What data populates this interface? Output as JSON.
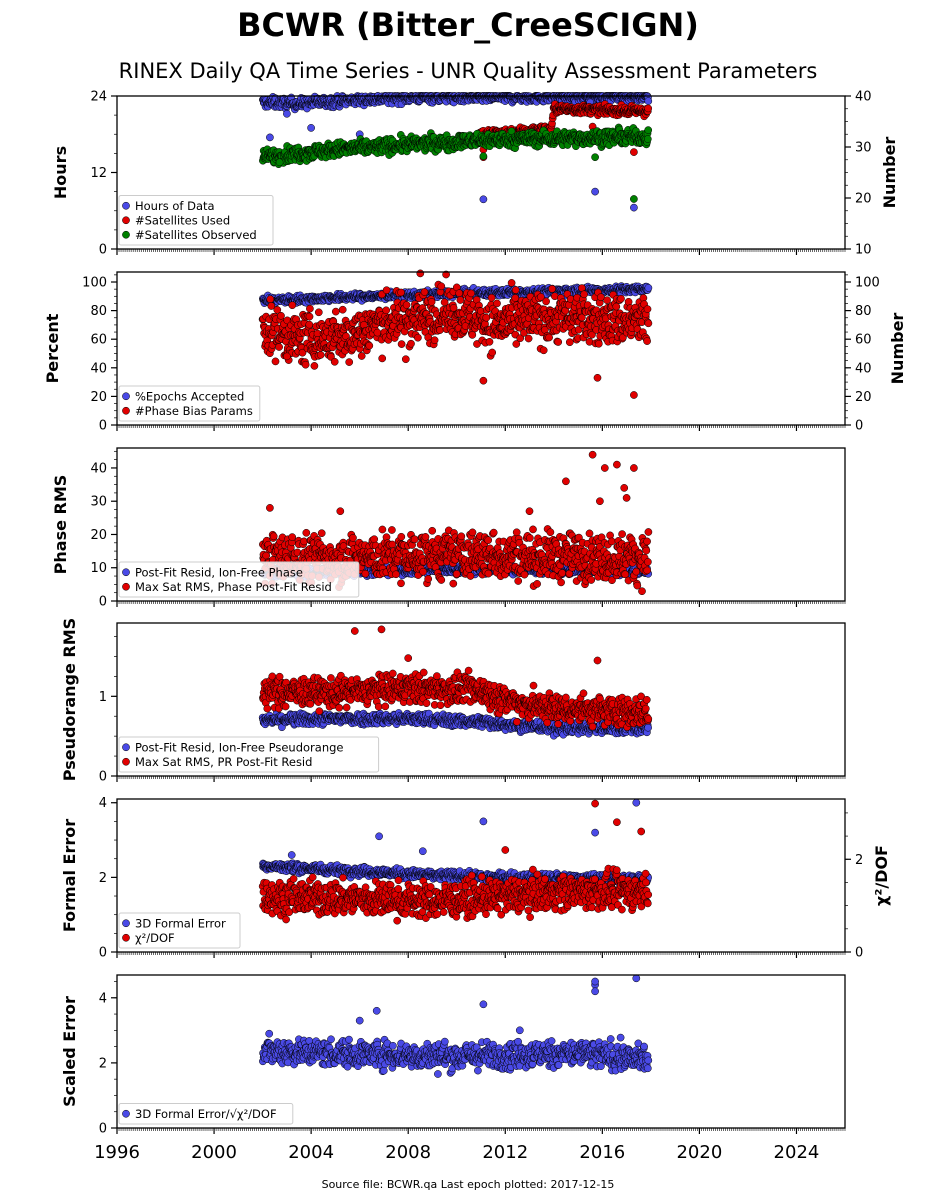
{
  "title": "BCWR (Bitter_CreeSCIGN)",
  "subtitle": "RINEX Daily QA Time Series - UNR Quality Assessment Parameters",
  "footer": "Source file: BCWR.qa Last epoch plotted: 2017-12-15",
  "colors": {
    "blue": "#4a4ae6",
    "red": "#e00000",
    "green": "#008000"
  },
  "chart_data": [
    {
      "type": "scatter",
      "ylabel": "Hours",
      "ylabel_right": "Number",
      "xlim": [
        1996,
        2026
      ],
      "ylim": [
        0,
        24
      ],
      "ylim_right": [
        10,
        40
      ],
      "yticks": [
        "0",
        "12",
        "24"
      ],
      "yticks_right": [
        "10",
        "20",
        "30",
        "40"
      ],
      "legend_position": "lower-left",
      "series": [
        {
          "name": "Hours of Data",
          "color": "blue",
          "axis": "left",
          "base": [
            [
              2002.0,
              23.0
            ],
            [
              2003.5,
              22.8
            ],
            [
              2005.5,
              23.3
            ],
            [
              2008,
              23.8
            ],
            [
              2012,
              23.8
            ],
            [
              2017.9,
              24
            ]
          ],
          "noise": 0.4,
          "outliers": [
            [
              2002.3,
              17.5
            ],
            [
              2004.0,
              19.0
            ],
            [
              2006.0,
              18.0
            ],
            [
              2011.1,
              7.8
            ],
            [
              2015.7,
              9.0
            ],
            [
              2017.3,
              6.5
            ],
            [
              2015.5,
              23.0
            ],
            [
              2003.0,
              21.2
            ]
          ]
        },
        {
          "name": "#Satellites Used",
          "color": "red",
          "axis": "right",
          "base": [
            [
              2010.8,
              32.5
            ],
            [
              2013.9,
              33.5
            ],
            [
              2014.0,
              37.5
            ],
            [
              2017.9,
              37.0
            ]
          ],
          "noise": 0.4,
          "outliers": [
            [
              2011.1,
              29.5
            ],
            [
              2017.3,
              29.0
            ],
            [
              2015.6,
              34.0
            ],
            [
              2011.1,
              28.0
            ]
          ]
        },
        {
          "name": "#Satellites Observed",
          "color": "green",
          "axis": "right",
          "base": [
            [
              2002.0,
              28.0
            ],
            [
              2005.0,
              29.5
            ],
            [
              2008.0,
              30.5
            ],
            [
              2012.0,
              31.5
            ],
            [
              2017.9,
              32.0
            ]
          ],
          "noise": 0.7,
          "outliers": [
            [
              2002.7,
              27.0
            ],
            [
              2011.1,
              28.2
            ],
            [
              2015.7,
              28.0
            ],
            [
              2017.3,
              19.8
            ]
          ]
        }
      ]
    },
    {
      "type": "scatter",
      "ylabel": "Percent",
      "ylabel_right": "Number",
      "xlim": [
        1996,
        2026
      ],
      "ylim": [
        0,
        107
      ],
      "ylim_right": [
        0,
        107
      ],
      "yticks": [
        "0",
        "20",
        "40",
        "60",
        "80",
        "100"
      ],
      "yticks_right": [
        "0",
        "20",
        "40",
        "60",
        "80",
        "100"
      ],
      "legend_position": "lower-left",
      "series": [
        {
          "name": "%Epochs Accepted",
          "color": "blue",
          "axis": "left",
          "base": [
            [
              2002.0,
              87
            ],
            [
              2005.0,
              89
            ],
            [
              2010.0,
              92
            ],
            [
              2017.9,
              95
            ]
          ],
          "noise": 1.2,
          "outliers": []
        },
        {
          "name": "#Phase Bias Params",
          "color": "red",
          "axis": "right",
          "base": [
            [
              2002.0,
              68
            ],
            [
              2003.5,
              60
            ],
            [
              2005.5,
              62
            ],
            [
              2007.0,
              72
            ],
            [
              2010.0,
              80
            ],
            [
              2011.5,
              70
            ],
            [
              2014.0,
              76
            ],
            [
              2017.9,
              72
            ]
          ],
          "noise": 9,
          "outliers": [
            [
              2011.1,
              31
            ],
            [
              2015.8,
              33
            ],
            [
              2017.3,
              21
            ],
            [
              2007.9,
              46
            ],
            [
              2003.0,
              48
            ],
            [
              2008.5,
              106
            ]
          ]
        }
      ]
    },
    {
      "type": "scatter",
      "ylabel": "Phase RMS",
      "xlim": [
        1996,
        2026
      ],
      "ylim": [
        0,
        46
      ],
      "yticks": [
        "0",
        "10",
        "20",
        "30",
        "40"
      ],
      "legend_position": "lower-left",
      "series": [
        {
          "name": "Post-Fit Resid, Ion-Free Phase",
          "color": "blue",
          "axis": "left",
          "base": [
            [
              2002.0,
              8.5
            ],
            [
              2005.5,
              8.8
            ],
            [
              2010.0,
              9.5
            ],
            [
              2017.9,
              9.0
            ]
          ],
          "noise": 0.6,
          "outliers": []
        },
        {
          "name": "Max Sat RMS, Phase Post-Fit Resid",
          "color": "red",
          "axis": "left",
          "base": [
            [
              2002.0,
              13
            ],
            [
              2005.5,
              13
            ],
            [
              2010.0,
              14
            ],
            [
              2017.9,
              13
            ]
          ],
          "noise": 3.5,
          "outliers": [
            [
              2002.3,
              28
            ],
            [
              2005.2,
              27
            ],
            [
              2014.5,
              36
            ],
            [
              2015.6,
              44
            ],
            [
              2016.1,
              40
            ],
            [
              2016.6,
              41
            ],
            [
              2017.3,
              40
            ],
            [
              2016.9,
              34
            ],
            [
              2017.0,
              31
            ],
            [
              2015.9,
              30
            ],
            [
              2013.0,
              27
            ]
          ]
        }
      ]
    },
    {
      "type": "scatter",
      "ylabel": "Pseudorange RMS",
      "xlim": [
        1996,
        2026
      ],
      "ylim": [
        0,
        1.92
      ],
      "yticks": [
        "0",
        "1"
      ],
      "legend_position": "lower-left",
      "series": [
        {
          "name": "Post-Fit Resid, Ion-Free Pseudorange",
          "color": "blue",
          "axis": "left",
          "base": [
            [
              2002.0,
              0.7
            ],
            [
              2005.0,
              0.72
            ],
            [
              2008.0,
              0.72
            ],
            [
              2011.0,
              0.68
            ],
            [
              2014.0,
              0.6
            ],
            [
              2017.9,
              0.6
            ]
          ],
          "noise": 0.035,
          "outliers": []
        },
        {
          "name": "Max Sat RMS, PR Post-Fit Resid",
          "color": "red",
          "axis": "left",
          "base": [
            [
              2002.0,
              1.05
            ],
            [
              2005.5,
              1.05
            ],
            [
              2008.0,
              1.1
            ],
            [
              2011.0,
              1.08
            ],
            [
              2012.0,
              0.95
            ],
            [
              2014.0,
              0.85
            ],
            [
              2017.9,
              0.8
            ]
          ],
          "noise": 0.09,
          "outliers": [
            [
              2005.8,
              1.82
            ],
            [
              2006.9,
              1.84
            ],
            [
              2015.8,
              1.45
            ],
            [
              2008.0,
              1.48
            ]
          ]
        }
      ]
    },
    {
      "type": "scatter",
      "ylabel": "Formal Error",
      "ylabel_right": "χ²/DOF",
      "xlim": [
        1996,
        2026
      ],
      "ylim": [
        0,
        4.1
      ],
      "ylim_right": [
        0,
        3.3
      ],
      "yticks": [
        "0",
        "2",
        "4"
      ],
      "yticks_right": [
        "0",
        "2"
      ],
      "legend_position": "lower-left",
      "series": [
        {
          "name": "3D Formal Error",
          "color": "blue",
          "axis": "left",
          "base": [
            [
              2002.0,
              2.3
            ],
            [
              2005.0,
              2.2
            ],
            [
              2009.0,
              2.05
            ],
            [
              2012.0,
              2.0
            ],
            [
              2017.9,
              1.95
            ]
          ],
          "noise": 0.06,
          "outliers": [
            [
              2006.8,
              3.1
            ],
            [
              2011.1,
              3.5
            ],
            [
              2015.7,
              3.2
            ],
            [
              2017.4,
              4.0
            ],
            [
              2008.6,
              2.7
            ],
            [
              2003.2,
              2.6
            ]
          ]
        },
        {
          "name": "χ²/DOF",
          "color": "red",
          "axis": "right",
          "base": [
            [
              2002.0,
              1.2
            ],
            [
              2005.5,
              1.15
            ],
            [
              2009.0,
              1.1
            ],
            [
              2012.0,
              1.2
            ],
            [
              2014.0,
              1.3
            ],
            [
              2017.9,
              1.3
            ]
          ],
          "noise": 0.18,
          "outliers": [
            [
              2015.7,
              3.2
            ],
            [
              2016.6,
              2.8
            ],
            [
              2017.6,
              2.6
            ],
            [
              2012.0,
              2.2
            ]
          ]
        }
      ]
    },
    {
      "type": "scatter",
      "ylabel": "Scaled Error",
      "xlim": [
        1996,
        2026
      ],
      "ylim": [
        0,
        4.7
      ],
      "yticks": [
        "0",
        "2",
        "4"
      ],
      "xticks": [
        "1996",
        "2000",
        "2004",
        "2008",
        "2012",
        "2016",
        "2020",
        "2024"
      ],
      "legend_position": "lower-left",
      "series": [
        {
          "name": "3D Formal Error/√χ²/DOF",
          "color": "blue",
          "axis": "left",
          "base": [
            [
              2002.0,
              2.4
            ],
            [
              2005.0,
              2.3
            ],
            [
              2010.0,
              2.2
            ],
            [
              2015.0,
              2.3
            ],
            [
              2017.9,
              2.1
            ]
          ],
          "noise": 0.2,
          "outliers": [
            [
              2006.7,
              3.6
            ],
            [
              2011.1,
              3.8
            ],
            [
              2015.7,
              4.4
            ],
            [
              2015.7,
              4.5
            ],
            [
              2015.7,
              4.2
            ],
            [
              2017.4,
              4.6
            ],
            [
              2006.0,
              3.3
            ],
            [
              2012.6,
              3.0
            ]
          ]
        }
      ]
    }
  ]
}
